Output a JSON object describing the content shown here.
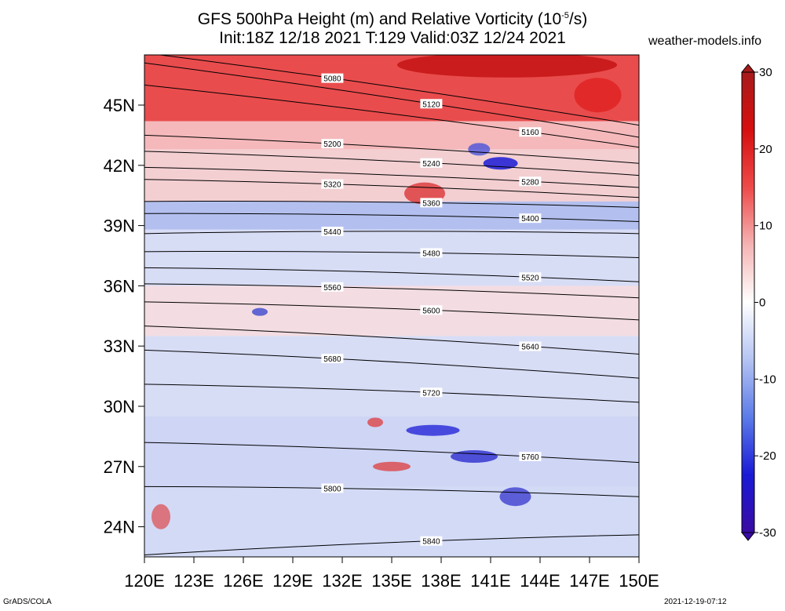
{
  "header": {
    "title_line1": "GFS 500hPa Height (m) and Relative Vorticity (10",
    "title_sup": "-5",
    "title_line1_end": "/s)",
    "title_line2": "Init:18Z 12/18 2021 T:129 Valid:03Z 12/24 2021",
    "site": "weather-models.info"
  },
  "footer": {
    "software": "GrADS/COLA",
    "timestamp": "2021-12-19-07:12"
  },
  "chart_data": {
    "type": "heatmap",
    "variable_fill": "Relative Vorticity (10^-5/s)",
    "variable_contour": "500hPa Height (m)",
    "xlim": [
      120,
      150
    ],
    "ylim": [
      22.5,
      47.5
    ],
    "x_ticks": [
      120,
      123,
      126,
      129,
      132,
      135,
      138,
      141,
      144,
      147,
      150
    ],
    "x_tick_labels": [
      "120E",
      "123E",
      "126E",
      "129E",
      "132E",
      "135E",
      "138E",
      "141E",
      "144E",
      "147E",
      "150E"
    ],
    "y_ticks": [
      24,
      27,
      30,
      33,
      36,
      39,
      42,
      45
    ],
    "y_tick_labels": [
      "24N",
      "27N",
      "30N",
      "33N",
      "36N",
      "39N",
      "42N",
      "45N"
    ],
    "colorbar": {
      "min": -30,
      "max": 30,
      "ticks": [
        30,
        20,
        10,
        0,
        -10,
        -20,
        -30
      ],
      "tick_labels": [
        "30",
        "20",
        "10",
        "0",
        "-10",
        "-20",
        "-30"
      ],
      "colors": [
        "#3a0ca3",
        "#1a1ad6",
        "#5b7be8",
        "#b4c3f2",
        "#ffffff",
        "#f5b3b3",
        "#ee4a4a",
        "#d60f0f",
        "#a81a1a"
      ]
    },
    "contours": [
      {
        "level": 5080,
        "label": "5080",
        "lat_at_120": 47.6,
        "lat_at_150": 44.0
      },
      {
        "level": 5120,
        "label": "5120",
        "lat_at_120": 47.1,
        "lat_at_150": 43.4
      },
      {
        "level": 5160,
        "label": "5160",
        "lat_at_120": 46.0,
        "lat_at_150": 42.9
      },
      {
        "level": 5200,
        "label": "5200",
        "lat_at_120": 43.5,
        "lat_at_150": 42.1
      },
      {
        "level": 5240,
        "label": "5240",
        "lat_at_120": 42.7,
        "lat_at_150": 41.5
      },
      {
        "level": 5280,
        "label": "5280",
        "lat_at_120": 41.9,
        "lat_at_150": 40.9
      },
      {
        "level": 5320,
        "label": "5320",
        "lat_at_120": 41.3,
        "lat_at_150": 40.4
      },
      {
        "level": 5360,
        "label": "5360",
        "lat_at_120": 40.2,
        "lat_at_150": 39.9
      },
      {
        "level": 5400,
        "label": "5400",
        "lat_at_120": 39.6,
        "lat_at_150": 39.2
      },
      {
        "level": 5440,
        "label": "5440",
        "lat_at_120": 38.6,
        "lat_at_150": 38.6
      },
      {
        "level": 5480,
        "label": "5480",
        "lat_at_120": 37.7,
        "lat_at_150": 37.4
      },
      {
        "level": 5520,
        "label": "5520",
        "lat_at_120": 36.9,
        "lat_at_150": 36.2
      },
      {
        "level": 5560,
        "label": "5560",
        "lat_at_120": 36.1,
        "lat_at_150": 35.4
      },
      {
        "level": 5600,
        "label": "5600",
        "lat_at_120": 35.2,
        "lat_at_150": 34.3
      },
      {
        "level": 5640,
        "label": "5640",
        "lat_at_120": 34.0,
        "lat_at_150": 32.6
      },
      {
        "level": 5680,
        "label": "5680",
        "lat_at_120": 32.8,
        "lat_at_150": 31.4
      },
      {
        "level": 5720,
        "label": "5720",
        "lat_at_120": 31.1,
        "lat_at_150": 30.2
      },
      {
        "level": 5760,
        "label": "5760",
        "lat_at_120": 28.2,
        "lat_at_150": 27.2
      },
      {
        "level": 5800,
        "label": "5800",
        "lat_at_120": 26.0,
        "lat_at_150": 25.5
      },
      {
        "level": 5840,
        "label": "5840",
        "lat_at_120": 22.6,
        "lat_at_150": 23.6
      }
    ]
  }
}
